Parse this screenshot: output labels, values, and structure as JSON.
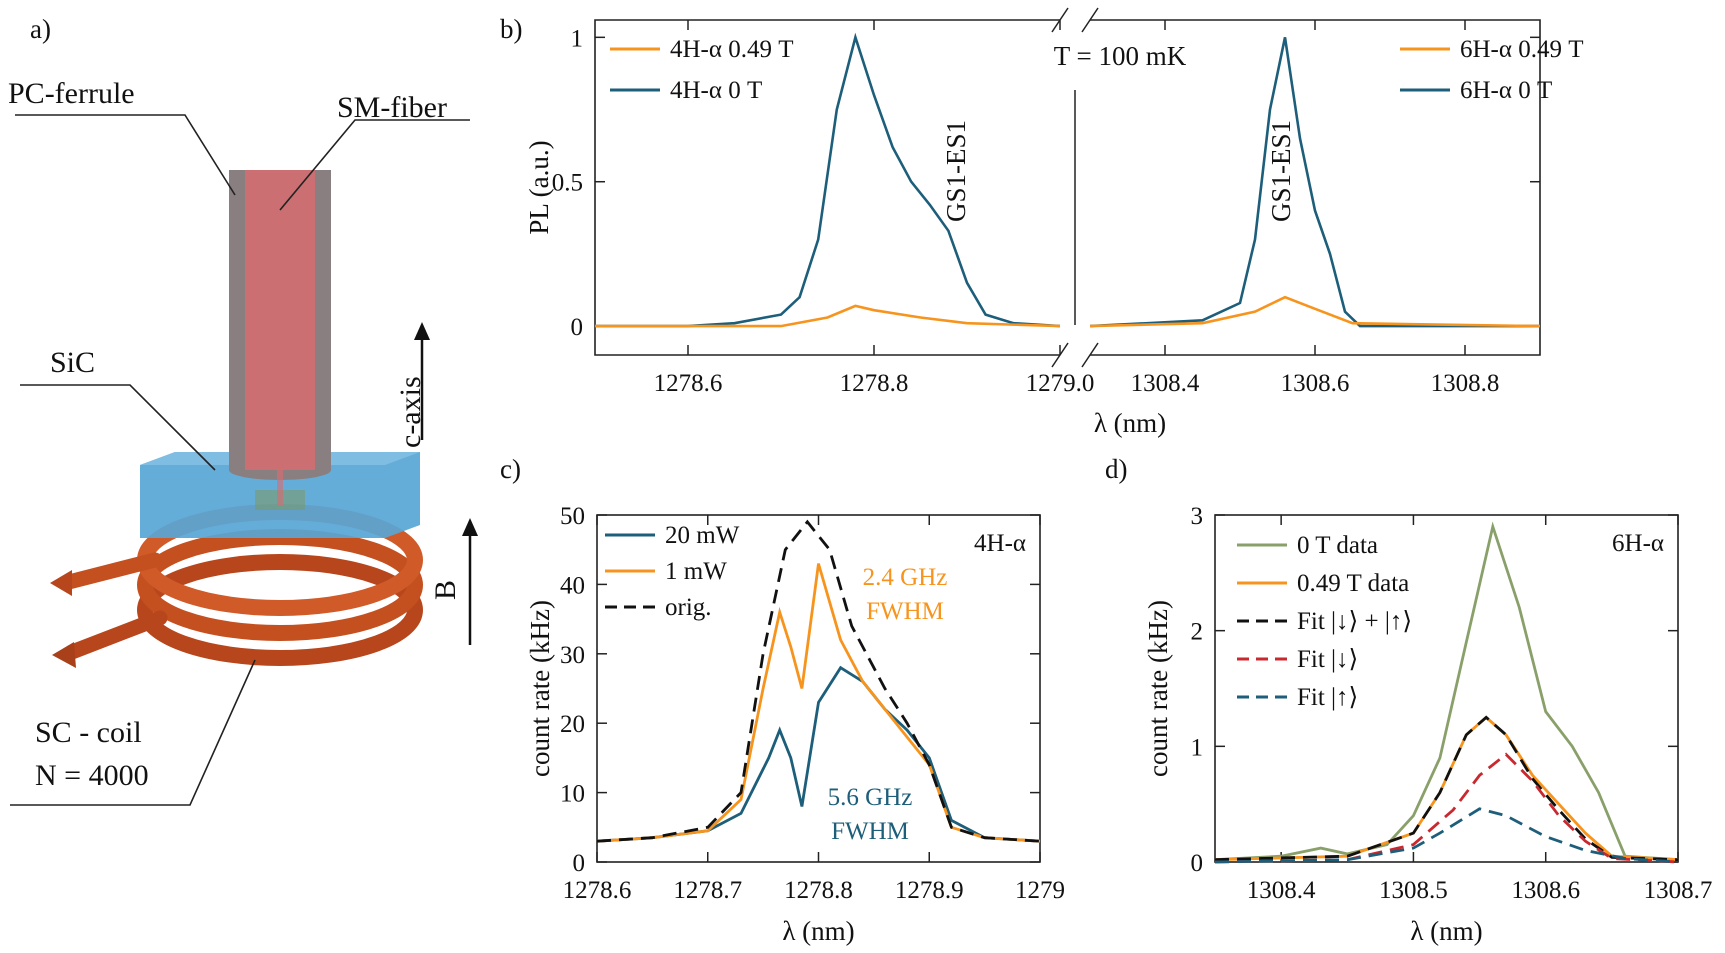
{
  "panel_labels": {
    "a": "a)",
    "b": "b)",
    "c": "c)",
    "d": "d)"
  },
  "diagram": {
    "pc_ferrule": "PC-ferrule",
    "sm_fiber": "SM-fiber",
    "sic": "SiC",
    "c_axis": "c-axis",
    "b_field": "B",
    "coil_line1": "SC - coil",
    "coil_line2": "N = 4000",
    "colors": {
      "ferrule": "#8a7f80",
      "fiber": "#e06a6e",
      "sic": "#58a6d6",
      "coil": "#b8461c"
    }
  },
  "colors": {
    "blue": "#1d5e7a",
    "orange": "#f7941d",
    "green": "#8aa06a",
    "red": "#c8282e",
    "dark": "#111111"
  },
  "chart_data": [
    {
      "id": "b",
      "type": "line",
      "ylabel": "PL (a.u.)",
      "xlabel": "λ (nm)",
      "annotation_temp": "T = 100 mK",
      "peak_label_left": "GS1-ES1",
      "peak_label_right": "GS1-ES1",
      "ylim": [
        -0.1,
        1.06
      ],
      "yticks": [
        {
          "v": 0,
          "label": "0"
        },
        {
          "v": 0.5,
          "label": "0.5"
        },
        {
          "v": 1,
          "label": "1"
        }
      ],
      "broken_axis": true,
      "segments": [
        {
          "xlim": [
            1278.5,
            1279.0
          ],
          "xticks": [
            {
              "v": 1278.6,
              "label": "1278.6"
            },
            {
              "v": 1278.8,
              "label": "1278.8"
            },
            {
              "v": 1279.0,
              "label": "1279.0"
            }
          ]
        },
        {
          "xlim": [
            1308.3,
            1308.9
          ],
          "xticks": [
            {
              "v": 1308.4,
              "label": "1308.4"
            },
            {
              "v": 1308.6,
              "label": "1308.6"
            },
            {
              "v": 1308.8,
              "label": "1308.8"
            }
          ]
        }
      ],
      "legend_left": [
        {
          "label": "4H-α  0.49 T",
          "color": "#f7941d"
        },
        {
          "label": "4H-α  0 T",
          "color": "#1d5e7a"
        }
      ],
      "legend_right": [
        {
          "label": "6H-α  0.49 T",
          "color": "#f7941d"
        },
        {
          "label": "6H-α  0 T",
          "color": "#1d5e7a"
        }
      ],
      "series": [
        {
          "segment": 0,
          "color": "#1d5e7a",
          "x": [
            1278.5,
            1278.6,
            1278.65,
            1278.7,
            1278.72,
            1278.74,
            1278.76,
            1278.78,
            1278.8,
            1278.82,
            1278.84,
            1278.86,
            1278.88,
            1278.9,
            1278.92,
            1278.95,
            1279.0
          ],
          "y": [
            0,
            0,
            0.01,
            0.04,
            0.1,
            0.3,
            0.75,
            1.0,
            0.8,
            0.62,
            0.5,
            0.42,
            0.33,
            0.15,
            0.04,
            0.01,
            0
          ]
        },
        {
          "segment": 0,
          "color": "#f7941d",
          "x": [
            1278.5,
            1278.7,
            1278.75,
            1278.78,
            1278.8,
            1278.85,
            1278.9,
            1279.0
          ],
          "y": [
            0,
            0,
            0.03,
            0.07,
            0.055,
            0.03,
            0.01,
            0
          ]
        },
        {
          "segment": 1,
          "color": "#1d5e7a",
          "x": [
            1308.3,
            1308.45,
            1308.5,
            1308.52,
            1308.54,
            1308.56,
            1308.58,
            1308.6,
            1308.62,
            1308.64,
            1308.66,
            1308.9
          ],
          "y": [
            0,
            0.02,
            0.08,
            0.3,
            0.75,
            1.0,
            0.65,
            0.4,
            0.25,
            0.05,
            0,
            0
          ]
        },
        {
          "segment": 1,
          "color": "#f7941d",
          "x": [
            1308.3,
            1308.45,
            1308.52,
            1308.56,
            1308.6,
            1308.65,
            1308.9
          ],
          "y": [
            0,
            0.01,
            0.05,
            0.1,
            0.06,
            0.01,
            0
          ]
        }
      ]
    },
    {
      "id": "c",
      "type": "line",
      "ylabel": "count rate (kHz)",
      "xlabel": "λ (nm)",
      "panel_tag": "4H-α",
      "xlim": [
        1278.6,
        1279
      ],
      "ylim": [
        0,
        50
      ],
      "xticks": [
        {
          "v": 1278.6,
          "label": "1278.6"
        },
        {
          "v": 1278.7,
          "label": "1278.7"
        },
        {
          "v": 1278.8,
          "label": "1278.8"
        },
        {
          "v": 1278.9,
          "label": "1278.9"
        },
        {
          "v": 1279,
          "label": "1279"
        }
      ],
      "yticks": [
        {
          "v": 0,
          "label": "0"
        },
        {
          "v": 10,
          "label": "10"
        },
        {
          "v": 20,
          "label": "20"
        },
        {
          "v": 30,
          "label": "30"
        },
        {
          "v": 40,
          "label": "40"
        },
        {
          "v": 50,
          "label": "50"
        }
      ],
      "annotations": [
        {
          "line1": "2.4 GHz",
          "line2": "FWHM",
          "color": "#f7941d"
        },
        {
          "line1": "5.6 GHz",
          "line2": "FWHM",
          "color": "#1d5e7a"
        }
      ],
      "legend": [
        {
          "label": "20 mW",
          "color": "#1d5e7a",
          "dash": false
        },
        {
          "label": "1 mW",
          "color": "#f7941d",
          "dash": false
        },
        {
          "label": "orig.",
          "color": "#111111",
          "dash": true
        }
      ],
      "series": [
        {
          "name": "20 mW",
          "color": "#1d5e7a",
          "dash": false,
          "x": [
            1278.6,
            1278.65,
            1278.7,
            1278.73,
            1278.755,
            1278.765,
            1278.775,
            1278.785,
            1278.8,
            1278.82,
            1278.84,
            1278.86,
            1278.88,
            1278.9,
            1278.92,
            1278.95,
            1279
          ],
          "y": [
            3,
            3.5,
            4.5,
            7,
            15,
            19,
            15,
            8,
            23,
            28,
            26,
            22,
            19,
            15,
            6,
            3.5,
            3
          ]
        },
        {
          "name": "1 mW",
          "color": "#f7941d",
          "dash": false,
          "x": [
            1278.6,
            1278.65,
            1278.7,
            1278.73,
            1278.75,
            1278.765,
            1278.775,
            1278.785,
            1278.8,
            1278.82,
            1278.84,
            1278.86,
            1278.88,
            1278.9,
            1278.92,
            1278.95,
            1279
          ],
          "y": [
            3,
            3.5,
            4.5,
            9,
            25,
            36,
            31,
            25,
            43,
            32,
            26,
            22,
            18,
            14,
            5,
            3.5,
            3
          ]
        },
        {
          "name": "orig.",
          "color": "#111111",
          "dash": true,
          "x": [
            1278.6,
            1278.65,
            1278.7,
            1278.73,
            1278.75,
            1278.77,
            1278.79,
            1278.81,
            1278.83,
            1278.86,
            1278.88,
            1278.9,
            1278.92,
            1278.95,
            1279
          ],
          "y": [
            3,
            3.5,
            5,
            10,
            30,
            45,
            49,
            45,
            34,
            25,
            20,
            14,
            5,
            3.5,
            3
          ]
        }
      ]
    },
    {
      "id": "d",
      "type": "line",
      "ylabel": "count rate (kHz)",
      "xlabel": "λ (nm)",
      "panel_tag": "6H-α",
      "xlim": [
        1308.35,
        1308.7
      ],
      "ylim": [
        0,
        3
      ],
      "xticks": [
        {
          "v": 1308.4,
          "label": "1308.4"
        },
        {
          "v": 1308.5,
          "label": "1308.5"
        },
        {
          "v": 1308.6,
          "label": "1308.6"
        },
        {
          "v": 1308.7,
          "label": "1308.7"
        }
      ],
      "yticks": [
        {
          "v": 0,
          "label": "0"
        },
        {
          "v": 1,
          "label": "1"
        },
        {
          "v": 2,
          "label": "2"
        },
        {
          "v": 3,
          "label": "3"
        }
      ],
      "legend": [
        {
          "label": "0 T data",
          "color": "#8aa06a",
          "dash": false
        },
        {
          "label": "0.49 T data",
          "color": "#f7941d",
          "dash": false
        },
        {
          "label": "Fit |↓⟩ + |↑⟩",
          "color": "#111111",
          "dash": true
        },
        {
          "label": "Fit |↓⟩",
          "color": "#c8282e",
          "dash": true
        },
        {
          "label": "Fit |↑⟩",
          "color": "#1d5e7a",
          "dash": true
        }
      ],
      "series": [
        {
          "name": "0 T data",
          "color": "#8aa06a",
          "dash": false,
          "x": [
            1308.35,
            1308.4,
            1308.43,
            1308.45,
            1308.48,
            1308.5,
            1308.52,
            1308.54,
            1308.56,
            1308.58,
            1308.6,
            1308.62,
            1308.64,
            1308.66,
            1308.7
          ],
          "y": [
            0.02,
            0.05,
            0.12,
            0.07,
            0.15,
            0.4,
            0.9,
            1.9,
            2.9,
            2.2,
            1.3,
            1.0,
            0.6,
            0.05,
            0.02
          ]
        },
        {
          "name": "0.49 T data",
          "color": "#f7941d",
          "dash": false,
          "x": [
            1308.35,
            1308.45,
            1308.5,
            1308.52,
            1308.54,
            1308.555,
            1308.57,
            1308.59,
            1308.61,
            1308.63,
            1308.65,
            1308.7
          ],
          "y": [
            0.02,
            0.05,
            0.25,
            0.6,
            1.1,
            1.25,
            1.1,
            0.75,
            0.5,
            0.25,
            0.05,
            0.02
          ]
        },
        {
          "name": "Fit |↓⟩ + |↑⟩",
          "color": "#111111",
          "dash": true,
          "x": [
            1308.35,
            1308.45,
            1308.5,
            1308.52,
            1308.54,
            1308.555,
            1308.57,
            1308.59,
            1308.61,
            1308.63,
            1308.65,
            1308.7
          ],
          "y": [
            0.02,
            0.05,
            0.25,
            0.6,
            1.1,
            1.25,
            1.1,
            0.72,
            0.45,
            0.2,
            0.04,
            0.02
          ]
        },
        {
          "name": "Fit |↓⟩",
          "color": "#c8282e",
          "dash": true,
          "x": [
            1308.35,
            1308.45,
            1308.5,
            1308.53,
            1308.55,
            1308.57,
            1308.59,
            1308.61,
            1308.63,
            1308.65,
            1308.7
          ],
          "y": [
            0,
            0.02,
            0.15,
            0.45,
            0.75,
            0.93,
            0.7,
            0.4,
            0.18,
            0.03,
            0
          ]
        },
        {
          "name": "Fit |↑⟩",
          "color": "#1d5e7a",
          "dash": true,
          "x": [
            1308.35,
            1308.45,
            1308.5,
            1308.52,
            1308.55,
            1308.57,
            1308.6,
            1308.63,
            1308.66,
            1308.7
          ],
          "y": [
            0,
            0.02,
            0.12,
            0.25,
            0.46,
            0.4,
            0.22,
            0.1,
            0.03,
            0
          ]
        }
      ]
    }
  ]
}
